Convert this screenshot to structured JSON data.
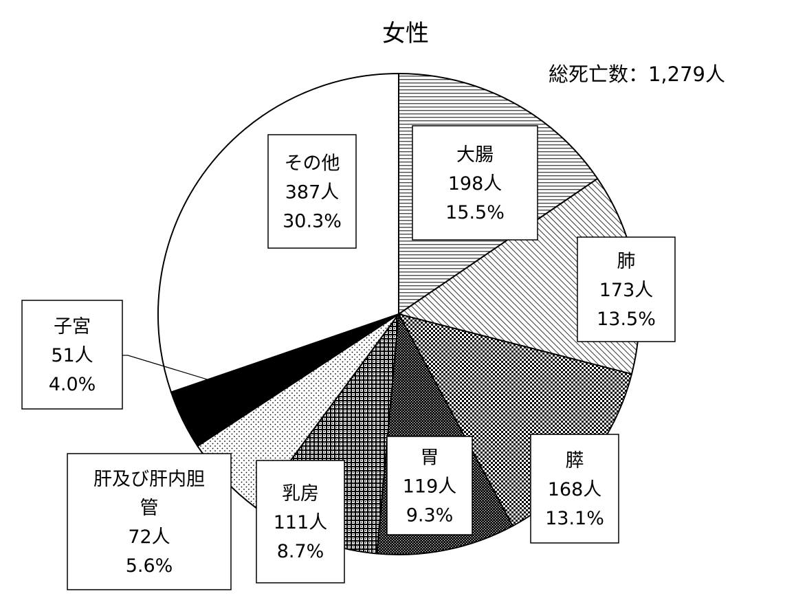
{
  "chart_data": {
    "type": "pie",
    "title": "女性",
    "total_label": "総死亡数：1,279人",
    "categories": [
      "大腸",
      "肺",
      "膵",
      "胃",
      "乳房",
      "肝及び肝内胆管",
      "子宮",
      "その他"
    ],
    "values": [
      198,
      173,
      168,
      119,
      111,
      72,
      51,
      387
    ],
    "percent_labels": [
      "15.5%",
      "13.5%",
      "13.1%",
      "9.3%",
      "8.7%",
      "5.6%",
      "4.0%",
      "30.3%"
    ],
    "count_labels": [
      "198人",
      "173人",
      "168人",
      "119人",
      "111人",
      "72人",
      "51人",
      "387人"
    ],
    "patterns": [
      "horizontal-lines",
      "diagonal-lines",
      "checker",
      "dense-dots",
      "grid",
      "sparse-dots",
      "solid-black",
      "white"
    ],
    "display_names": [
      "大腸",
      "肺",
      "膵",
      "胃",
      "乳房",
      "肝及び肝内胆\n管",
      "子宮",
      "その他"
    ],
    "start": "top",
    "direction": "clockwise"
  }
}
